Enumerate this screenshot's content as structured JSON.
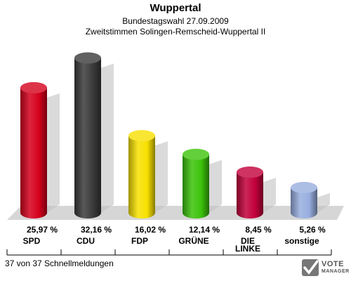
{
  "chart_data": {
    "type": "bar",
    "title": "Wuppertal",
    "subtitle_1": "Bundestagswahl 27.09.2009",
    "subtitle_2": "Zweitstimmen Solingen-Remscheid-Wuppertal II",
    "categories": [
      "SPD",
      "CDU",
      "FDP",
      "GRÜNE",
      "DIE LINKE",
      "sonstige"
    ],
    "values": [
      25.97,
      32.16,
      16.02,
      12.14,
      8.45,
      5.26
    ],
    "value_labels": [
      "25,97 %",
      "32,16 %",
      "16,02 %",
      "12,14 %",
      "8,45 %",
      "5,26 %"
    ],
    "colors": [
      "#d5001c",
      "#3a3a3a",
      "#f7e000",
      "#3cc30a",
      "#c2003a",
      "#98aedf"
    ],
    "ylim": [
      0,
      35
    ]
  },
  "footer": {
    "count_label": "37 von 37 Schnellmeldungen",
    "logo_line1": "VOTE",
    "logo_line2": "MANAGER"
  }
}
